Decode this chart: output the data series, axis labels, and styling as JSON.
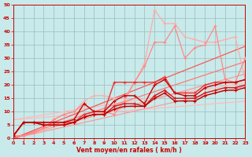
{
  "title": "",
  "xlabel": "Vent moyen/en rafales ( km/h )",
  "ylabel": "",
  "bg_color": "#c8eaea",
  "grid_color": "#99bbbb",
  "xlim": [
    0,
    23
  ],
  "ylim": [
    0,
    50
  ],
  "xticks": [
    0,
    1,
    2,
    3,
    4,
    5,
    6,
    7,
    8,
    9,
    10,
    11,
    12,
    13,
    14,
    15,
    16,
    17,
    18,
    19,
    20,
    21,
    22,
    23
  ],
  "yticks": [
    0,
    5,
    10,
    15,
    20,
    25,
    30,
    35,
    40,
    45,
    50
  ],
  "straight_lines": [
    {
      "slope": 0.3,
      "intercept": 7.0,
      "color": "#ffbbbb",
      "lw": 0.9
    },
    {
      "slope": 0.6,
      "intercept": 7.0,
      "color": "#ffbbbb",
      "lw": 0.9
    },
    {
      "slope": 0.85,
      "intercept": 0.0,
      "color": "#ff9999",
      "lw": 0.9
    },
    {
      "slope": 1.05,
      "intercept": 0.0,
      "color": "#ff9999",
      "lw": 0.9
    },
    {
      "slope": 1.25,
      "intercept": 0.0,
      "color": "#ff7777",
      "lw": 0.9
    },
    {
      "slope": 1.5,
      "intercept": 0.0,
      "color": "#ff5555",
      "lw": 0.9
    }
  ],
  "data_lines": [
    {
      "x": [
        0,
        1,
        2,
        3,
        4,
        5,
        6,
        7,
        8,
        9,
        10,
        11,
        12,
        13,
        14,
        15,
        16,
        17,
        18,
        19,
        20,
        21,
        22,
        23
      ],
      "y": [
        1,
        1,
        2,
        4,
        7,
        9,
        10,
        14,
        16,
        16,
        15,
        15,
        21,
        28,
        48,
        43,
        43,
        38,
        37,
        36,
        36,
        37,
        38,
        22
      ],
      "color": "#ffaaaa",
      "marker": "+",
      "markersize": 3.5,
      "lw": 0.9
    },
    {
      "x": [
        0,
        1,
        2,
        3,
        4,
        5,
        6,
        7,
        8,
        9,
        10,
        11,
        12,
        13,
        14,
        15,
        16,
        17,
        18,
        19,
        20,
        21,
        22,
        23
      ],
      "y": [
        1,
        1,
        2,
        4,
        7,
        9,
        10,
        13,
        10,
        10,
        9,
        14,
        21,
        27,
        36,
        36,
        42,
        30,
        34,
        35,
        42,
        22,
        21,
        30
      ],
      "color": "#ff8888",
      "marker": "+",
      "markersize": 3.5,
      "lw": 0.9
    },
    {
      "x": [
        0,
        1,
        2,
        3,
        4,
        5,
        6,
        7,
        8,
        9,
        10,
        11,
        12,
        13,
        14,
        15,
        16,
        17,
        18,
        19,
        20,
        21,
        22,
        23
      ],
      "y": [
        1,
        6,
        6,
        6,
        6,
        6,
        6,
        9,
        10,
        10,
        21,
        21,
        21,
        21,
        21,
        23,
        17,
        17,
        17,
        20,
        21,
        21,
        21,
        22
      ],
      "color": "#ee3333",
      "marker": "+",
      "markersize": 3.5,
      "lw": 1.0
    },
    {
      "x": [
        0,
        1,
        2,
        3,
        4,
        5,
        6,
        7,
        8,
        9,
        10,
        11,
        12,
        13,
        14,
        15,
        16,
        17,
        18,
        19,
        20,
        21,
        22,
        23
      ],
      "y": [
        1,
        6,
        6,
        6,
        6,
        6,
        7,
        13,
        10,
        10,
        14,
        16,
        16,
        13,
        20,
        22,
        17,
        16,
        16,
        19,
        20,
        21,
        21,
        22
      ],
      "color": "#cc0000",
      "marker": "+",
      "markersize": 3.5,
      "lw": 1.0
    },
    {
      "x": [
        0,
        1,
        2,
        3,
        4,
        5,
        6,
        7,
        8,
        9,
        10,
        11,
        12,
        13,
        14,
        15,
        16,
        17,
        18,
        19,
        20,
        21,
        22,
        23
      ],
      "y": [
        1,
        6,
        6,
        5,
        5,
        5,
        6,
        8,
        9,
        9,
        12,
        13,
        13,
        12,
        16,
        18,
        15,
        15,
        15,
        17,
        18,
        19,
        19,
        20
      ],
      "color": "#dd1111",
      "marker": "+",
      "markersize": 3.5,
      "lw": 1.0
    },
    {
      "x": [
        0,
        1,
        2,
        3,
        4,
        5,
        6,
        7,
        8,
        9,
        10,
        11,
        12,
        13,
        14,
        15,
        16,
        17,
        18,
        19,
        20,
        21,
        22,
        23
      ],
      "y": [
        1,
        6,
        6,
        5,
        5,
        5,
        6,
        8,
        9,
        9,
        11,
        12,
        12,
        12,
        15,
        17,
        14,
        14,
        14,
        16,
        17,
        18,
        18,
        19
      ],
      "color": "#bb0000",
      "marker": "+",
      "markersize": 3.5,
      "lw": 1.0
    }
  ]
}
